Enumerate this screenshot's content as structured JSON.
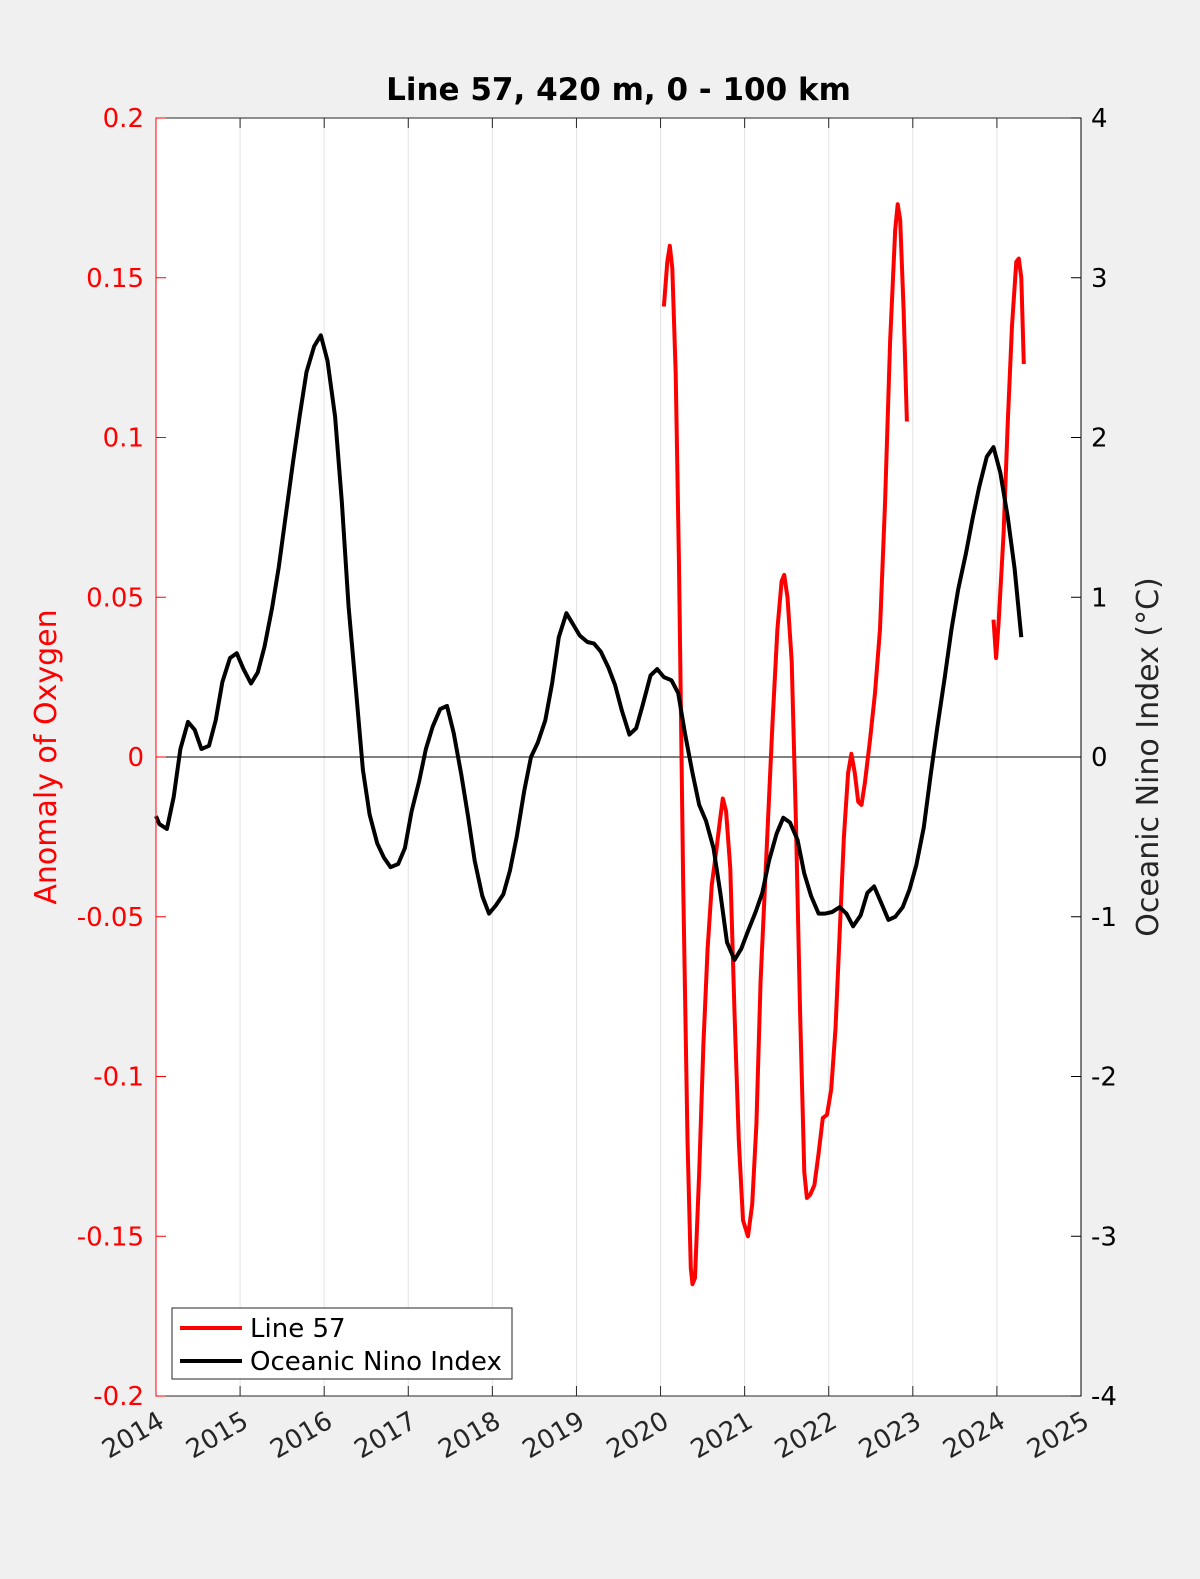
{
  "chart_data": {
    "type": "line",
    "title": "Line 57, 420 m, 0 - 100 km",
    "xlabel": "",
    "ylabel_left": "Anomaly of Oxygen",
    "ylabel_right": "Oceanic Nino Index (°C)",
    "xlim": [
      2014,
      2025
    ],
    "ylim_left": [
      -0.2,
      0.2
    ],
    "ylim_right": [
      -4,
      4
    ],
    "x_ticks": [
      2014,
      2015,
      2016,
      2017,
      2018,
      2019,
      2020,
      2021,
      2022,
      2023,
      2024,
      2025
    ],
    "x_tick_labels": [
      "2014",
      "2015",
      "2016",
      "2017",
      "2018",
      "2019",
      "2020",
      "2021",
      "2022",
      "2023",
      "2024",
      "2025"
    ],
    "y_left_ticks": [
      -0.2,
      -0.15,
      -0.1,
      -0.05,
      0,
      0.05,
      0.1,
      0.15,
      0.2
    ],
    "y_left_tick_labels": [
      "-0.2",
      "-0.15",
      "-0.1",
      "-0.05",
      "0",
      "0.05",
      "0.1",
      "0.15",
      "0.2"
    ],
    "y_right_ticks": [
      -4,
      -3,
      -2,
      -1,
      0,
      1,
      2,
      3,
      4
    ],
    "y_right_tick_labels": [
      "-4",
      "-3",
      "-2",
      "-1",
      "0",
      "1",
      "2",
      "3",
      "4"
    ],
    "grid": "vertical x-grid on",
    "zero_line": true,
    "legend_position": "bottom-left",
    "colors": {
      "line57": "#ff0000",
      "oni": "#000000",
      "left_axis": "#ff0000",
      "right_axis": "#000000",
      "background": "#f0f0f0",
      "plot_bg": "#ffffff"
    },
    "series": [
      {
        "name": "Line 57",
        "axis": "left",
        "color": "#ff0000",
        "segments": [
          [
            [
              2020.04,
              0.141
            ],
            [
              2020.08,
              0.155
            ],
            [
              2020.11,
              0.16
            ],
            [
              2020.14,
              0.153
            ],
            [
              2020.18,
              0.12
            ],
            [
              2020.22,
              0.06
            ],
            [
              2020.27,
              -0.04
            ],
            [
              2020.32,
              -0.12
            ],
            [
              2020.36,
              -0.16
            ],
            [
              2020.38,
              -0.165
            ],
            [
              2020.41,
              -0.163
            ],
            [
              2020.46,
              -0.13
            ],
            [
              2020.51,
              -0.09
            ],
            [
              2020.56,
              -0.06
            ],
            [
              2020.61,
              -0.04
            ],
            [
              2020.66,
              -0.03
            ],
            [
              2020.71,
              -0.019
            ],
            [
              2020.74,
              -0.013
            ],
            [
              2020.78,
              -0.017
            ],
            [
              2020.83,
              -0.035
            ],
            [
              2020.88,
              -0.08
            ],
            [
              2020.93,
              -0.12
            ],
            [
              2020.98,
              -0.145
            ],
            [
              2021.04,
              -0.15
            ],
            [
              2021.09,
              -0.14
            ],
            [
              2021.14,
              -0.115
            ],
            [
              2021.19,
              -0.07
            ],
            [
              2021.26,
              -0.03
            ],
            [
              2021.33,
              0.01
            ],
            [
              2021.39,
              0.04
            ],
            [
              2021.44,
              0.055
            ],
            [
              2021.47,
              0.057
            ],
            [
              2021.51,
              0.05
            ],
            [
              2021.56,
              0.03
            ],
            [
              2021.61,
              -0.02
            ],
            [
              2021.66,
              -0.08
            ],
            [
              2021.71,
              -0.13
            ],
            [
              2021.74,
              -0.138
            ],
            [
              2021.78,
              -0.137
            ],
            [
              2021.83,
              -0.134
            ],
            [
              2021.88,
              -0.124
            ],
            [
              2021.93,
              -0.113
            ],
            [
              2021.98,
              -0.112
            ],
            [
              2022.03,
              -0.104
            ],
            [
              2022.08,
              -0.085
            ],
            [
              2022.13,
              -0.055
            ],
            [
              2022.18,
              -0.025
            ],
            [
              2022.23,
              -0.005
            ],
            [
              2022.27,
              0.001
            ],
            [
              2022.31,
              -0.005
            ],
            [
              2022.35,
              -0.014
            ],
            [
              2022.39,
              -0.015
            ],
            [
              2022.43,
              -0.008
            ],
            [
              2022.49,
              0.005
            ],
            [
              2022.55,
              0.02
            ],
            [
              2022.61,
              0.04
            ],
            [
              2022.67,
              0.08
            ],
            [
              2022.73,
              0.13
            ],
            [
              2022.79,
              0.165
            ],
            [
              2022.82,
              0.173
            ],
            [
              2022.85,
              0.168
            ],
            [
              2022.89,
              0.14
            ],
            [
              2022.93,
              0.105
            ]
          ],
          [
            [
              2023.96,
              0.043
            ],
            [
              2023.99,
              0.031
            ],
            [
              2024.02,
              0.042
            ],
            [
              2024.08,
              0.07
            ],
            [
              2024.13,
              0.105
            ],
            [
              2024.18,
              0.135
            ],
            [
              2024.23,
              0.155
            ],
            [
              2024.26,
              0.156
            ],
            [
              2024.29,
              0.15
            ],
            [
              2024.32,
              0.123
            ]
          ]
        ]
      },
      {
        "name": "Oceanic Nino Index",
        "axis": "right",
        "color": "#000000",
        "segments": [
          [
            [
              2014.0,
              -0.37
            ],
            [
              2014.04,
              -0.42
            ],
            [
              2014.13,
              -0.45
            ],
            [
              2014.21,
              -0.25
            ],
            [
              2014.29,
              0.05
            ],
            [
              2014.38,
              0.22
            ],
            [
              2014.46,
              0.17
            ],
            [
              2014.54,
              0.05
            ],
            [
              2014.63,
              0.07
            ],
            [
              2014.71,
              0.23
            ],
            [
              2014.79,
              0.47
            ],
            [
              2014.88,
              0.62
            ],
            [
              2014.96,
              0.65
            ],
            [
              2015.04,
              0.55
            ],
            [
              2015.13,
              0.46
            ],
            [
              2015.21,
              0.53
            ],
            [
              2015.29,
              0.69
            ],
            [
              2015.38,
              0.93
            ],
            [
              2015.46,
              1.19
            ],
            [
              2015.54,
              1.5
            ],
            [
              2015.63,
              1.85
            ],
            [
              2015.71,
              2.14
            ],
            [
              2015.79,
              2.41
            ],
            [
              2015.88,
              2.57
            ],
            [
              2015.96,
              2.64
            ],
            [
              2016.04,
              2.48
            ],
            [
              2016.13,
              2.13
            ],
            [
              2016.21,
              1.6
            ],
            [
              2016.29,
              0.94
            ],
            [
              2016.38,
              0.41
            ],
            [
              2016.46,
              -0.08
            ],
            [
              2016.54,
              -0.36
            ],
            [
              2016.63,
              -0.54
            ],
            [
              2016.71,
              -0.63
            ],
            [
              2016.79,
              -0.69
            ],
            [
              2016.88,
              -0.67
            ],
            [
              2016.96,
              -0.57
            ],
            [
              2017.04,
              -0.34
            ],
            [
              2017.13,
              -0.15
            ],
            [
              2017.21,
              0.05
            ],
            [
              2017.29,
              0.19
            ],
            [
              2017.38,
              0.3
            ],
            [
              2017.46,
              0.32
            ],
            [
              2017.54,
              0.15
            ],
            [
              2017.63,
              -0.11
            ],
            [
              2017.71,
              -0.37
            ],
            [
              2017.79,
              -0.65
            ],
            [
              2017.88,
              -0.87
            ],
            [
              2017.96,
              -0.98
            ],
            [
              2018.04,
              -0.93
            ],
            [
              2018.13,
              -0.86
            ],
            [
              2018.21,
              -0.71
            ],
            [
              2018.29,
              -0.5
            ],
            [
              2018.38,
              -0.21
            ],
            [
              2018.46,
              0.0
            ],
            [
              2018.54,
              0.09
            ],
            [
              2018.63,
              0.23
            ],
            [
              2018.71,
              0.46
            ],
            [
              2018.79,
              0.75
            ],
            [
              2018.88,
              0.9
            ],
            [
              2018.96,
              0.83
            ],
            [
              2019.04,
              0.76
            ],
            [
              2019.13,
              0.72
            ],
            [
              2019.21,
              0.71
            ],
            [
              2019.29,
              0.66
            ],
            [
              2019.38,
              0.56
            ],
            [
              2019.46,
              0.45
            ],
            [
              2019.54,
              0.29
            ],
            [
              2019.63,
              0.14
            ],
            [
              2019.71,
              0.18
            ],
            [
              2019.79,
              0.33
            ],
            [
              2019.88,
              0.51
            ],
            [
              2019.96,
              0.55
            ],
            [
              2020.04,
              0.5
            ],
            [
              2020.13,
              0.48
            ],
            [
              2020.21,
              0.4
            ],
            [
              2020.29,
              0.15
            ],
            [
              2020.38,
              -0.1
            ],
            [
              2020.46,
              -0.3
            ],
            [
              2020.54,
              -0.4
            ],
            [
              2020.63,
              -0.57
            ],
            [
              2020.71,
              -0.85
            ],
            [
              2020.79,
              -1.16
            ],
            [
              2020.88,
              -1.27
            ],
            [
              2020.96,
              -1.2
            ],
            [
              2021.04,
              -1.09
            ],
            [
              2021.13,
              -0.97
            ],
            [
              2021.21,
              -0.85
            ],
            [
              2021.29,
              -0.65
            ],
            [
              2021.38,
              -0.48
            ],
            [
              2021.46,
              -0.38
            ],
            [
              2021.54,
              -0.41
            ],
            [
              2021.63,
              -0.52
            ],
            [
              2021.71,
              -0.73
            ],
            [
              2021.79,
              -0.87
            ],
            [
              2021.88,
              -0.98
            ],
            [
              2021.96,
              -0.98
            ],
            [
              2022.04,
              -0.97
            ],
            [
              2022.13,
              -0.94
            ],
            [
              2022.21,
              -0.98
            ],
            [
              2022.29,
              -1.06
            ],
            [
              2022.38,
              -0.99
            ],
            [
              2022.46,
              -0.85
            ],
            [
              2022.54,
              -0.81
            ],
            [
              2022.63,
              -0.92
            ],
            [
              2022.71,
              -1.02
            ],
            [
              2022.79,
              -1.0
            ],
            [
              2022.88,
              -0.94
            ],
            [
              2022.96,
              -0.83
            ],
            [
              2023.04,
              -0.68
            ],
            [
              2023.13,
              -0.44
            ],
            [
              2023.21,
              -0.12
            ],
            [
              2023.29,
              0.18
            ],
            [
              2023.38,
              0.5
            ],
            [
              2023.46,
              0.8
            ],
            [
              2023.54,
              1.05
            ],
            [
              2023.63,
              1.27
            ],
            [
              2023.71,
              1.49
            ],
            [
              2023.79,
              1.69
            ],
            [
              2023.88,
              1.88
            ],
            [
              2023.96,
              1.94
            ],
            [
              2024.04,
              1.78
            ],
            [
              2024.13,
              1.5
            ],
            [
              2024.21,
              1.18
            ],
            [
              2024.29,
              0.75
            ]
          ]
        ]
      }
    ]
  }
}
